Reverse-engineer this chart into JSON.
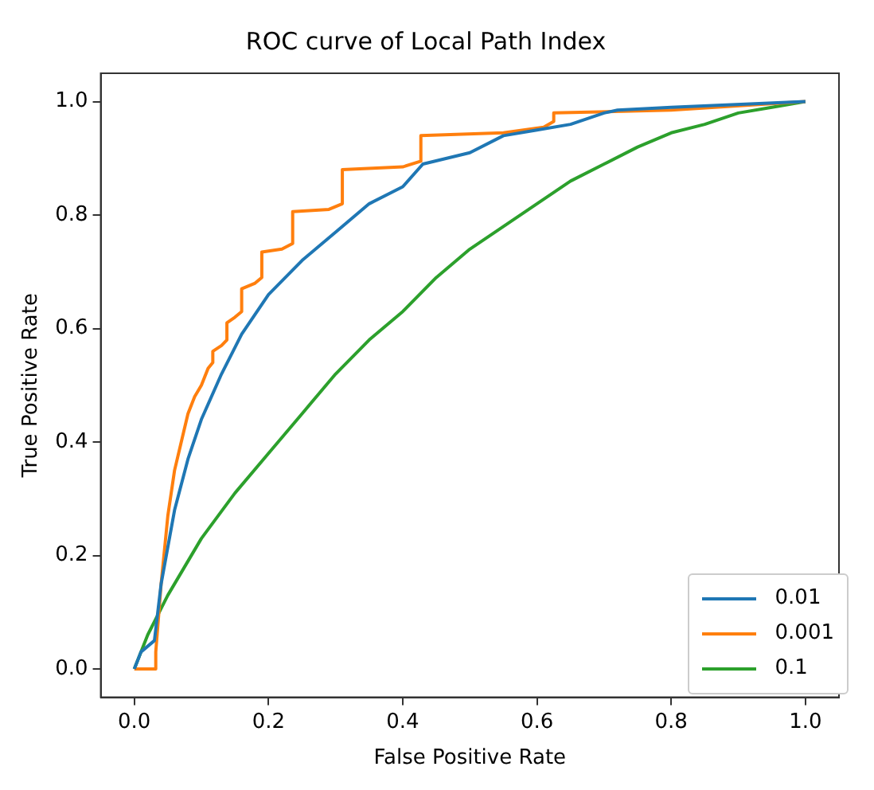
{
  "chart_data": {
    "type": "line",
    "title": "ROC curve of Local Path Index",
    "xlabel": "False Positive Rate",
    "ylabel": "True Positive Rate",
    "xlim": [
      -0.05,
      1.05
    ],
    "ylim": [
      -0.05,
      1.05
    ],
    "xticks": [
      {
        "value": 0,
        "label": "0.0"
      },
      0.2,
      0.4,
      0.6,
      0.8,
      {
        "value": 1,
        "label": "1.0"
      }
    ],
    "yticks": [
      {
        "value": 0,
        "label": "0.0"
      },
      0.2,
      0.4,
      0.6,
      0.8,
      {
        "value": 1,
        "label": "1.0"
      }
    ],
    "grid": false,
    "legend": "bottom right",
    "marker": "none",
    "line_style": "solid",
    "series": [
      {
        "name": "0.01",
        "color": "#1f77b4",
        "x": [
          0,
          0.01,
          0.03,
          0.04,
          0.06,
          0.08,
          0.1,
          0.13,
          0.16,
          0.2,
          0.25,
          0.3,
          0.35,
          0.4,
          0.43,
          0.5,
          0.55,
          0.6,
          0.65,
          0.7,
          0.72,
          0.8,
          1
        ],
        "values": [
          0,
          0.03,
          0.05,
          0.15,
          0.28,
          0.37,
          0.44,
          0.52,
          0.59,
          0.66,
          0.72,
          0.77,
          0.82,
          0.85,
          0.89,
          0.91,
          0.94,
          0.95,
          0.96,
          0.98,
          0.985,
          0.99,
          1
        ]
      },
      {
        "name": "0.001",
        "color": "#ff7f0e",
        "x": [
          0,
          0.032,
          0.032,
          0.04,
          0.05,
          0.06,
          0.07,
          0.08,
          0.09,
          0.1,
          0.11,
          0.117,
          0.117,
          0.13,
          0.138,
          0.138,
          0.15,
          0.16,
          0.16,
          0.18,
          0.19,
          0.19,
          0.22,
          0.236,
          0.236,
          0.29,
          0.31,
          0.31,
          0.4,
          0.427,
          0.427,
          0.55,
          0.61,
          0.625,
          0.625,
          0.8,
          1
        ],
        "values": [
          0,
          0,
          0.03,
          0.15,
          0.27,
          0.35,
          0.4,
          0.45,
          0.48,
          0.5,
          0.53,
          0.54,
          0.56,
          0.57,
          0.58,
          0.61,
          0.62,
          0.63,
          0.67,
          0.68,
          0.69,
          0.735,
          0.74,
          0.75,
          0.806,
          0.81,
          0.82,
          0.88,
          0.885,
          0.895,
          0.94,
          0.945,
          0.955,
          0.965,
          0.98,
          0.985,
          1
        ]
      },
      {
        "name": "0.1",
        "color": "#2ca02c",
        "x": [
          0,
          0.02,
          0.05,
          0.1,
          0.15,
          0.2,
          0.25,
          0.3,
          0.35,
          0.4,
          0.45,
          0.5,
          0.55,
          0.6,
          0.65,
          0.7,
          0.75,
          0.8,
          0.85,
          0.9,
          0.95,
          1
        ],
        "values": [
          0,
          0.06,
          0.13,
          0.23,
          0.31,
          0.38,
          0.45,
          0.52,
          0.58,
          0.63,
          0.69,
          0.74,
          0.78,
          0.82,
          0.86,
          0.89,
          0.92,
          0.945,
          0.96,
          0.98,
          0.99,
          1
        ]
      }
    ]
  }
}
